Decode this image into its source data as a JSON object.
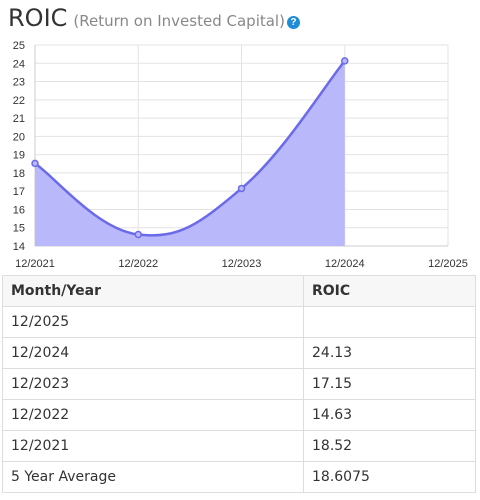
{
  "header": {
    "title": "ROIC",
    "subtitle": "(Return on Invested Capital)",
    "help_glyph": "?"
  },
  "colors": {
    "line": "#6b6bea",
    "fill": "#b8b8fb",
    "grid": "#e3e3e3",
    "help_icon": "#1f8dd6"
  },
  "chart_data": {
    "type": "area",
    "title": "ROIC",
    "xlabel": "",
    "ylabel": "",
    "x_ticks": [
      "12/2021",
      "12/2022",
      "12/2023",
      "12/2024",
      "12/2025"
    ],
    "y_ticks": [
      14,
      15,
      16,
      17,
      18,
      19,
      20,
      21,
      22,
      23,
      24,
      25
    ],
    "ylim": [
      14,
      25
    ],
    "grid": true,
    "series": [
      {
        "x": [
          "12/2021",
          "12/2022",
          "12/2023",
          "12/2024"
        ],
        "values": [
          18.52,
          14.63,
          17.15,
          24.13
        ]
      }
    ]
  },
  "table": {
    "headers": [
      "Month/Year",
      "ROIC"
    ],
    "rows": [
      [
        "12/2025",
        ""
      ],
      [
        "12/2024",
        "24.13"
      ],
      [
        "12/2023",
        "17.15"
      ],
      [
        "12/2022",
        "14.63"
      ],
      [
        "12/2021",
        "18.52"
      ],
      [
        "5 Year Average",
        "18.6075"
      ]
    ]
  }
}
